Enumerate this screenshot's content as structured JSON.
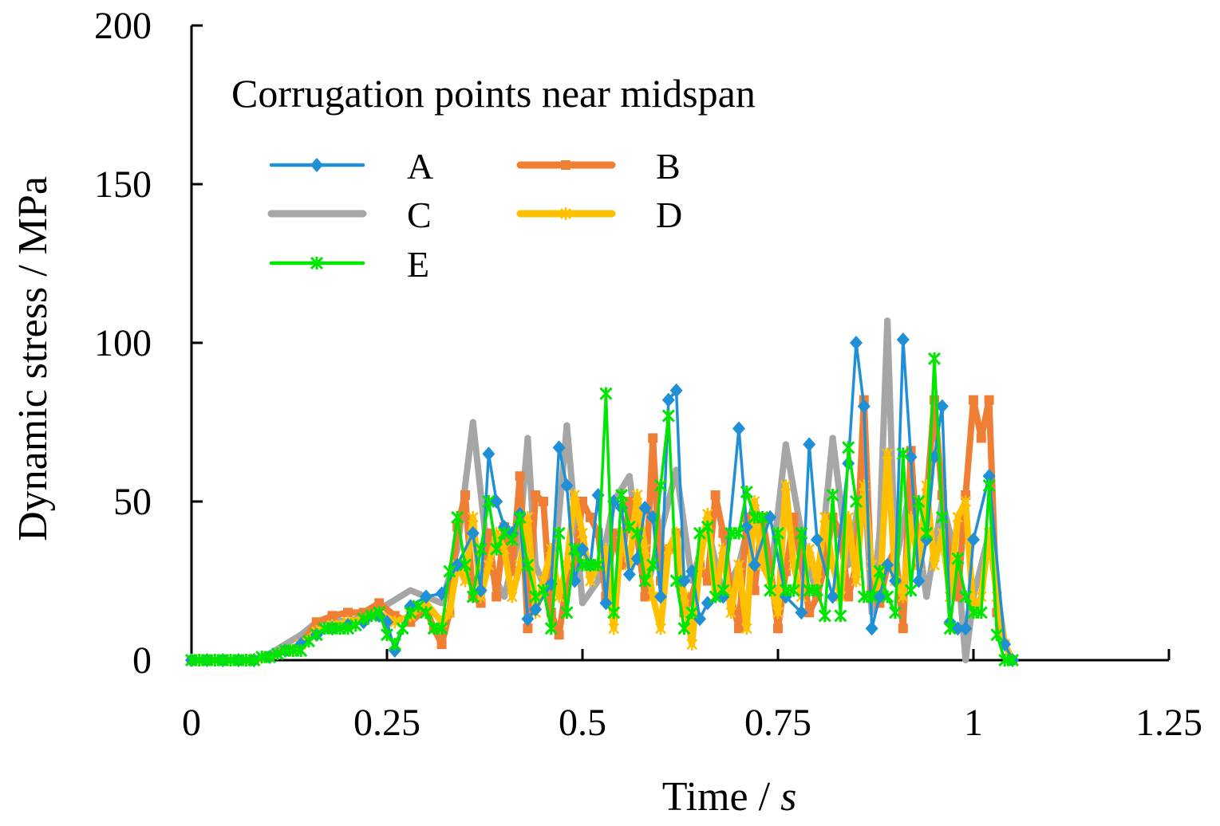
{
  "chart_data": {
    "type": "line",
    "xlabel": "Time",
    "xlabel_sep": " / ",
    "xlabel_unit": "s",
    "ylabel": "Dynamic stress / MPa",
    "xlim": [
      0,
      1.25
    ],
    "ylim": [
      0,
      200
    ],
    "x_ticks": [
      0,
      0.25,
      0.5,
      0.75,
      1,
      1.25
    ],
    "x_tick_labels": [
      "0",
      "0.25",
      "0.5",
      "0.75",
      "1",
      "1.25"
    ],
    "y_ticks": [
      0,
      50,
      100,
      150,
      200
    ],
    "y_tick_labels": [
      "0",
      "50",
      "100",
      "150",
      "200"
    ],
    "legend_title": "Corrugation points near midspan",
    "series": [
      {
        "name": "A",
        "color": "#1f8fd6",
        "marker": "diamond",
        "x": [
          0,
          0.02,
          0.04,
          0.06,
          0.08,
          0.1,
          0.12,
          0.14,
          0.16,
          0.18,
          0.2,
          0.22,
          0.24,
          0.25,
          0.26,
          0.28,
          0.3,
          0.32,
          0.34,
          0.36,
          0.37,
          0.38,
          0.39,
          0.4,
          0.41,
          0.42,
          0.43,
          0.44,
          0.46,
          0.47,
          0.48,
          0.49,
          0.5,
          0.51,
          0.52,
          0.53,
          0.54,
          0.55,
          0.56,
          0.57,
          0.58,
          0.59,
          0.6,
          0.61,
          0.62,
          0.63,
          0.64,
          0.65,
          0.66,
          0.68,
          0.7,
          0.71,
          0.72,
          0.74,
          0.76,
          0.78,
          0.79,
          0.8,
          0.82,
          0.84,
          0.85,
          0.86,
          0.87,
          0.88,
          0.89,
          0.9,
          0.91,
          0.92,
          0.93,
          0.94,
          0.95,
          0.96,
          0.97,
          0.98,
          0.99,
          1.0,
          1.02,
          1.04,
          1.05
        ],
        "y": [
          0,
          0,
          0,
          0,
          0,
          1,
          3,
          5,
          8,
          10,
          11,
          12,
          14,
          12,
          3,
          17,
          20,
          21,
          30,
          40,
          22,
          65,
          50,
          42,
          40,
          46,
          13,
          16,
          24,
          67,
          55,
          25,
          35,
          30,
          52,
          18,
          50,
          48,
          27,
          32,
          48,
          45,
          20,
          82,
          85,
          25,
          28,
          13,
          18,
          20,
          73,
          42,
          30,
          45,
          20,
          15,
          68,
          38,
          20,
          62,
          100,
          80,
          10,
          20,
          30,
          25,
          101,
          64,
          25,
          38,
          64,
          80,
          12,
          10,
          10,
          38,
          58,
          5,
          0
        ]
      },
      {
        "name": "B",
        "color": "#f07f36",
        "marker": "square",
        "x": [
          0,
          0.02,
          0.04,
          0.06,
          0.08,
          0.1,
          0.12,
          0.14,
          0.16,
          0.18,
          0.2,
          0.22,
          0.24,
          0.26,
          0.28,
          0.3,
          0.31,
          0.32,
          0.33,
          0.34,
          0.35,
          0.36,
          0.37,
          0.38,
          0.39,
          0.4,
          0.41,
          0.42,
          0.43,
          0.44,
          0.45,
          0.46,
          0.47,
          0.48,
          0.49,
          0.5,
          0.51,
          0.52,
          0.53,
          0.54,
          0.55,
          0.56,
          0.57,
          0.58,
          0.59,
          0.6,
          0.61,
          0.62,
          0.63,
          0.64,
          0.65,
          0.66,
          0.67,
          0.68,
          0.69,
          0.7,
          0.71,
          0.72,
          0.73,
          0.74,
          0.75,
          0.76,
          0.77,
          0.78,
          0.79,
          0.8,
          0.81,
          0.82,
          0.83,
          0.84,
          0.85,
          0.86,
          0.87,
          0.88,
          0.89,
          0.9,
          0.91,
          0.92,
          0.93,
          0.94,
          0.95,
          0.96,
          0.97,
          0.98,
          0.99,
          1.0,
          1.01,
          1.02,
          1.03,
          1.04,
          1.05
        ],
        "y": [
          0,
          0,
          0,
          0,
          0,
          1,
          3,
          5,
          12,
          14,
          15,
          15,
          18,
          14,
          12,
          16,
          10,
          5,
          15,
          42,
          52,
          20,
          18,
          40,
          20,
          42,
          28,
          58,
          10,
          52,
          50,
          15,
          8,
          25,
          30,
          50,
          45,
          40,
          20,
          40,
          30,
          50,
          40,
          20,
          70,
          25,
          35,
          40,
          15,
          20,
          30,
          25,
          52,
          40,
          20,
          10,
          45,
          22,
          45,
          30,
          10,
          28,
          45,
          30,
          15,
          20,
          30,
          45,
          40,
          20,
          30,
          82,
          22,
          18,
          30,
          35,
          10,
          66,
          30,
          50,
          82,
          52,
          30,
          20,
          52,
          82,
          70,
          82,
          15,
          5,
          0
        ]
      },
      {
        "name": "C",
        "color": "#a6a6a6",
        "marker": "dash",
        "x": [
          0,
          0.02,
          0.04,
          0.06,
          0.08,
          0.1,
          0.12,
          0.14,
          0.16,
          0.18,
          0.2,
          0.22,
          0.24,
          0.26,
          0.28,
          0.3,
          0.32,
          0.34,
          0.36,
          0.38,
          0.4,
          0.42,
          0.43,
          0.44,
          0.46,
          0.48,
          0.5,
          0.52,
          0.54,
          0.56,
          0.58,
          0.6,
          0.62,
          0.64,
          0.66,
          0.68,
          0.7,
          0.72,
          0.74,
          0.76,
          0.78,
          0.8,
          0.82,
          0.84,
          0.86,
          0.87,
          0.88,
          0.89,
          0.9,
          0.92,
          0.94,
          0.96,
          0.98,
          0.99,
          1.0,
          1.02,
          1.04,
          1.05
        ],
        "y": [
          0,
          0,
          0,
          0,
          0,
          2,
          5,
          8,
          12,
          13,
          12,
          14,
          16,
          19,
          22,
          20,
          18,
          35,
          75,
          30,
          20,
          40,
          70,
          30,
          18,
          74,
          18,
          25,
          50,
          58,
          20,
          40,
          60,
          25,
          42,
          20,
          30,
          50,
          25,
          68,
          40,
          20,
          70,
          30,
          60,
          15,
          40,
          107,
          30,
          55,
          20,
          50,
          30,
          0,
          20,
          40,
          5,
          0
        ]
      },
      {
        "name": "D",
        "color": "#ffc000",
        "marker": "star",
        "x": [
          0,
          0.02,
          0.04,
          0.06,
          0.08,
          0.1,
          0.12,
          0.14,
          0.16,
          0.18,
          0.2,
          0.22,
          0.24,
          0.26,
          0.28,
          0.3,
          0.32,
          0.33,
          0.34,
          0.35,
          0.36,
          0.37,
          0.38,
          0.39,
          0.4,
          0.41,
          0.42,
          0.43,
          0.44,
          0.45,
          0.46,
          0.47,
          0.48,
          0.49,
          0.5,
          0.51,
          0.52,
          0.53,
          0.54,
          0.55,
          0.56,
          0.57,
          0.58,
          0.59,
          0.6,
          0.61,
          0.62,
          0.63,
          0.64,
          0.65,
          0.66,
          0.67,
          0.68,
          0.69,
          0.7,
          0.71,
          0.72,
          0.73,
          0.74,
          0.75,
          0.76,
          0.77,
          0.78,
          0.79,
          0.8,
          0.81,
          0.82,
          0.83,
          0.84,
          0.85,
          0.86,
          0.87,
          0.88,
          0.89,
          0.9,
          0.91,
          0.92,
          0.93,
          0.94,
          0.95,
          0.96,
          0.97,
          0.98,
          0.99,
          1.0,
          1.01,
          1.02,
          1.03,
          1.04,
          1.05
        ],
        "y": [
          0,
          0,
          0,
          0,
          0,
          1,
          3,
          5,
          9,
          11,
          12,
          13,
          15,
          12,
          14,
          18,
          12,
          15,
          30,
          25,
          45,
          20,
          30,
          40,
          35,
          20,
          30,
          45,
          15,
          25,
          35,
          20,
          30,
          52,
          40,
          25,
          30,
          35,
          10,
          40,
          30,
          52,
          35,
          20,
          10,
          35,
          40,
          20,
          5,
          30,
          46,
          20,
          35,
          15,
          30,
          10,
          50,
          30,
          25,
          15,
          55,
          30,
          20,
          35,
          25,
          45,
          30,
          20,
          45,
          25,
          55,
          30,
          20,
          65,
          25,
          20,
          45,
          30,
          55,
          30,
          40,
          20,
          45,
          50,
          15,
          20,
          40,
          20,
          5,
          0
        ]
      },
      {
        "name": "E",
        "color": "#00e600",
        "marker": "x",
        "x": [
          0,
          0.01,
          0.02,
          0.03,
          0.04,
          0.05,
          0.06,
          0.07,
          0.08,
          0.09,
          0.1,
          0.11,
          0.12,
          0.13,
          0.14,
          0.15,
          0.16,
          0.17,
          0.18,
          0.19,
          0.2,
          0.21,
          0.22,
          0.23,
          0.24,
          0.25,
          0.26,
          0.27,
          0.28,
          0.29,
          0.3,
          0.31,
          0.32,
          0.33,
          0.34,
          0.35,
          0.36,
          0.37,
          0.38,
          0.39,
          0.4,
          0.41,
          0.42,
          0.43,
          0.44,
          0.45,
          0.46,
          0.47,
          0.48,
          0.49,
          0.5,
          0.51,
          0.52,
          0.53,
          0.54,
          0.55,
          0.56,
          0.57,
          0.58,
          0.59,
          0.6,
          0.61,
          0.62,
          0.63,
          0.64,
          0.65,
          0.66,
          0.67,
          0.68,
          0.69,
          0.7,
          0.71,
          0.72,
          0.73,
          0.74,
          0.75,
          0.76,
          0.77,
          0.78,
          0.79,
          0.8,
          0.81,
          0.82,
          0.83,
          0.84,
          0.85,
          0.86,
          0.87,
          0.88,
          0.89,
          0.9,
          0.91,
          0.92,
          0.93,
          0.94,
          0.95,
          0.96,
          0.97,
          0.98,
          0.99,
          1.0,
          1.01,
          1.02,
          1.03,
          1.04,
          1.05
        ],
        "y": [
          0,
          0,
          0,
          0,
          0,
          0,
          0,
          0,
          0,
          1,
          1,
          2,
          3,
          3,
          3,
          6,
          8,
          10,
          10,
          10,
          10,
          11,
          13,
          14,
          15,
          8,
          5,
          10,
          15,
          17,
          15,
          10,
          10,
          28,
          45,
          30,
          20,
          35,
          50,
          35,
          40,
          38,
          45,
          30,
          20,
          22,
          10,
          40,
          15,
          35,
          30,
          30,
          30,
          84,
          15,
          52,
          42,
          40,
          25,
          30,
          55,
          77,
          25,
          10,
          15,
          40,
          42,
          20,
          22,
          40,
          40,
          53,
          45,
          45,
          22,
          40,
          22,
          22,
          40,
          22,
          22,
          14,
          52,
          14,
          67,
          50,
          20,
          20,
          28,
          20,
          15,
          65,
          22,
          50,
          40,
          95,
          45,
          10,
          32,
          20,
          15,
          15,
          55,
          8,
          0,
          0
        ]
      }
    ]
  }
}
